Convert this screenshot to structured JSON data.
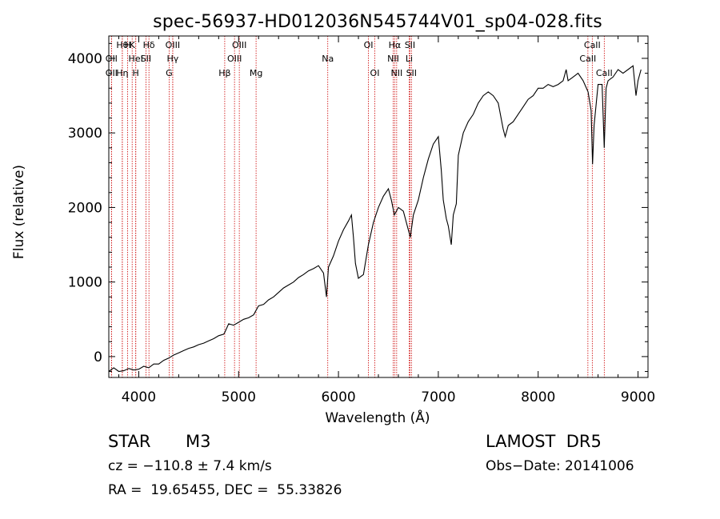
{
  "chart_data": {
    "type": "line",
    "title": "spec-56937-HD012036N545744V01_sp04-028.fits",
    "xlabel": "Wavelength (Å)",
    "ylabel": "Flux (relative)",
    "xlim": [
      3700,
      9100
    ],
    "ylim": [
      -280,
      4300
    ],
    "xticks": [
      4000,
      5000,
      6000,
      7000,
      8000,
      9000
    ],
    "yticks": [
      0,
      1000,
      2000,
      3000,
      4000
    ],
    "grid": false,
    "series": [
      {
        "x": [
          3700,
          3750,
          3800,
          3850,
          3900,
          3950,
          4000,
          4050,
          4100,
          4150,
          4200,
          4250,
          4300,
          4350,
          4400,
          4450,
          4500,
          4550,
          4600,
          4650,
          4700,
          4750,
          4800,
          4850,
          4860,
          4900,
          4950,
          5000,
          5050,
          5100,
          5150,
          5200,
          5250,
          5300,
          5350,
          5400,
          5450,
          5500,
          5550,
          5600,
          5650,
          5700,
          5750,
          5800,
          5850,
          5880,
          5900,
          5950,
          6000,
          6050,
          6100,
          6130,
          6150,
          6170,
          6200,
          6250,
          6300,
          6350,
          6400,
          6450,
          6500,
          6530,
          6560,
          6600,
          6650,
          6700,
          6720,
          6750,
          6800,
          6850,
          6900,
          6950,
          7000,
          7030,
          7050,
          7080,
          7100,
          7130,
          7150,
          7180,
          7200,
          7250,
          7300,
          7350,
          7400,
          7450,
          7500,
          7550,
          7600,
          7650,
          7670,
          7700,
          7750,
          7800,
          7850,
          7900,
          7950,
          8000,
          8050,
          8100,
          8150,
          8200,
          8250,
          8280,
          8300,
          8350,
          8400,
          8450,
          8500,
          8530,
          8545,
          8560,
          8600,
          8640,
          8662,
          8680,
          8700,
          8750,
          8800,
          8850,
          8900,
          8950,
          8980,
          9000,
          9030
        ],
        "y": [
          -200,
          -150,
          -200,
          -190,
          -160,
          -180,
          -170,
          -130,
          -150,
          -100,
          -100,
          -50,
          -20,
          20,
          50,
          80,
          110,
          130,
          160,
          180,
          210,
          240,
          280,
          300,
          320,
          440,
          420,
          460,
          500,
          520,
          560,
          680,
          700,
          760,
          800,
          860,
          920,
          960,
          1000,
          1060,
          1100,
          1150,
          1180,
          1220,
          1120,
          800,
          1200,
          1350,
          1550,
          1700,
          1820,
          1900,
          1600,
          1250,
          1050,
          1100,
          1500,
          1800,
          2000,
          2150,
          2250,
          2100,
          1900,
          2000,
          1950,
          1700,
          1600,
          1900,
          2100,
          2400,
          2650,
          2850,
          2950,
          2500,
          2100,
          1850,
          1750,
          1500,
          1900,
          2050,
          2700,
          3000,
          3150,
          3250,
          3400,
          3500,
          3550,
          3500,
          3400,
          3050,
          2950,
          3100,
          3150,
          3250,
          3350,
          3450,
          3500,
          3600,
          3600,
          3650,
          3620,
          3650,
          3700,
          3850,
          3700,
          3750,
          3800,
          3700,
          3550,
          3300,
          2580,
          3100,
          3650,
          3650,
          2800,
          3600,
          3700,
          3750,
          3850,
          3800,
          3850,
          3900,
          3500,
          3700,
          3850
        ]
      }
    ],
    "line_markers": [
      {
        "wl": 3835,
        "label": "Hθ",
        "row": 0
      },
      {
        "wl": 3889,
        "label": "H",
        "row": 0
      },
      {
        "wl": 3934,
        "label": "K",
        "row": 0
      },
      {
        "wl": 4102,
        "label": "Hδ",
        "row": 0
      },
      {
        "wl": 4340,
        "label": "OIII",
        "row": 0
      },
      {
        "wl": 5007,
        "label": "OIII",
        "row": 0
      },
      {
        "wl": 6300,
        "label": "OI",
        "row": 0
      },
      {
        "wl": 6563,
        "label": "Hα",
        "row": 0
      },
      {
        "wl": 6716,
        "label": "SII",
        "row": 0
      },
      {
        "wl": 8542,
        "label": "CaII",
        "row": 0
      },
      {
        "wl": 3727,
        "label": "OII",
        "row": 1
      },
      {
        "wl": 3970,
        "label": "HeI",
        "row": 1
      },
      {
        "wl": 4072,
        "label": "SII",
        "row": 1
      },
      {
        "wl": 4340,
        "label": "Hγ",
        "row": 1
      },
      {
        "wl": 4959,
        "label": "OIII",
        "row": 1
      },
      {
        "wl": 6548,
        "label": "NII",
        "row": 1
      },
      {
        "wl": 6708,
        "label": "Li",
        "row": 1
      },
      {
        "wl": 8498,
        "label": "CaII",
        "row": 1
      },
      {
        "wl": 3727,
        "label": "OII",
        "row": 2
      },
      {
        "wl": 3835,
        "label": "Hη",
        "row": 2
      },
      {
        "wl": 3970,
        "label": "H",
        "row": 2
      },
      {
        "wl": 4304,
        "label": "G",
        "row": 2
      },
      {
        "wl": 4861,
        "label": "Hβ",
        "row": 2
      },
      {
        "wl": 5175,
        "label": "Mg",
        "row": 2
      },
      {
        "wl": 5893,
        "label": "Na",
        "row": 1
      },
      {
        "wl": 6364,
        "label": "OI",
        "row": 2
      },
      {
        "wl": 6583,
        "label": "NII",
        "row": 2
      },
      {
        "wl": 6731,
        "label": "SII",
        "row": 2
      },
      {
        "wl": 8662,
        "label": "CaII",
        "row": 2
      }
    ],
    "marker_color": "#cc0000",
    "line_color": "#000000"
  },
  "info": {
    "object_class": "STAR",
    "subclass": "M3",
    "survey": "LAMOST  DR5",
    "cz": "cz = −110.8 ± 7.4 km/s",
    "obs_date": "Obs−Date: 20141006",
    "coords": "RA =  19.65455, DEC =  55.33826"
  }
}
